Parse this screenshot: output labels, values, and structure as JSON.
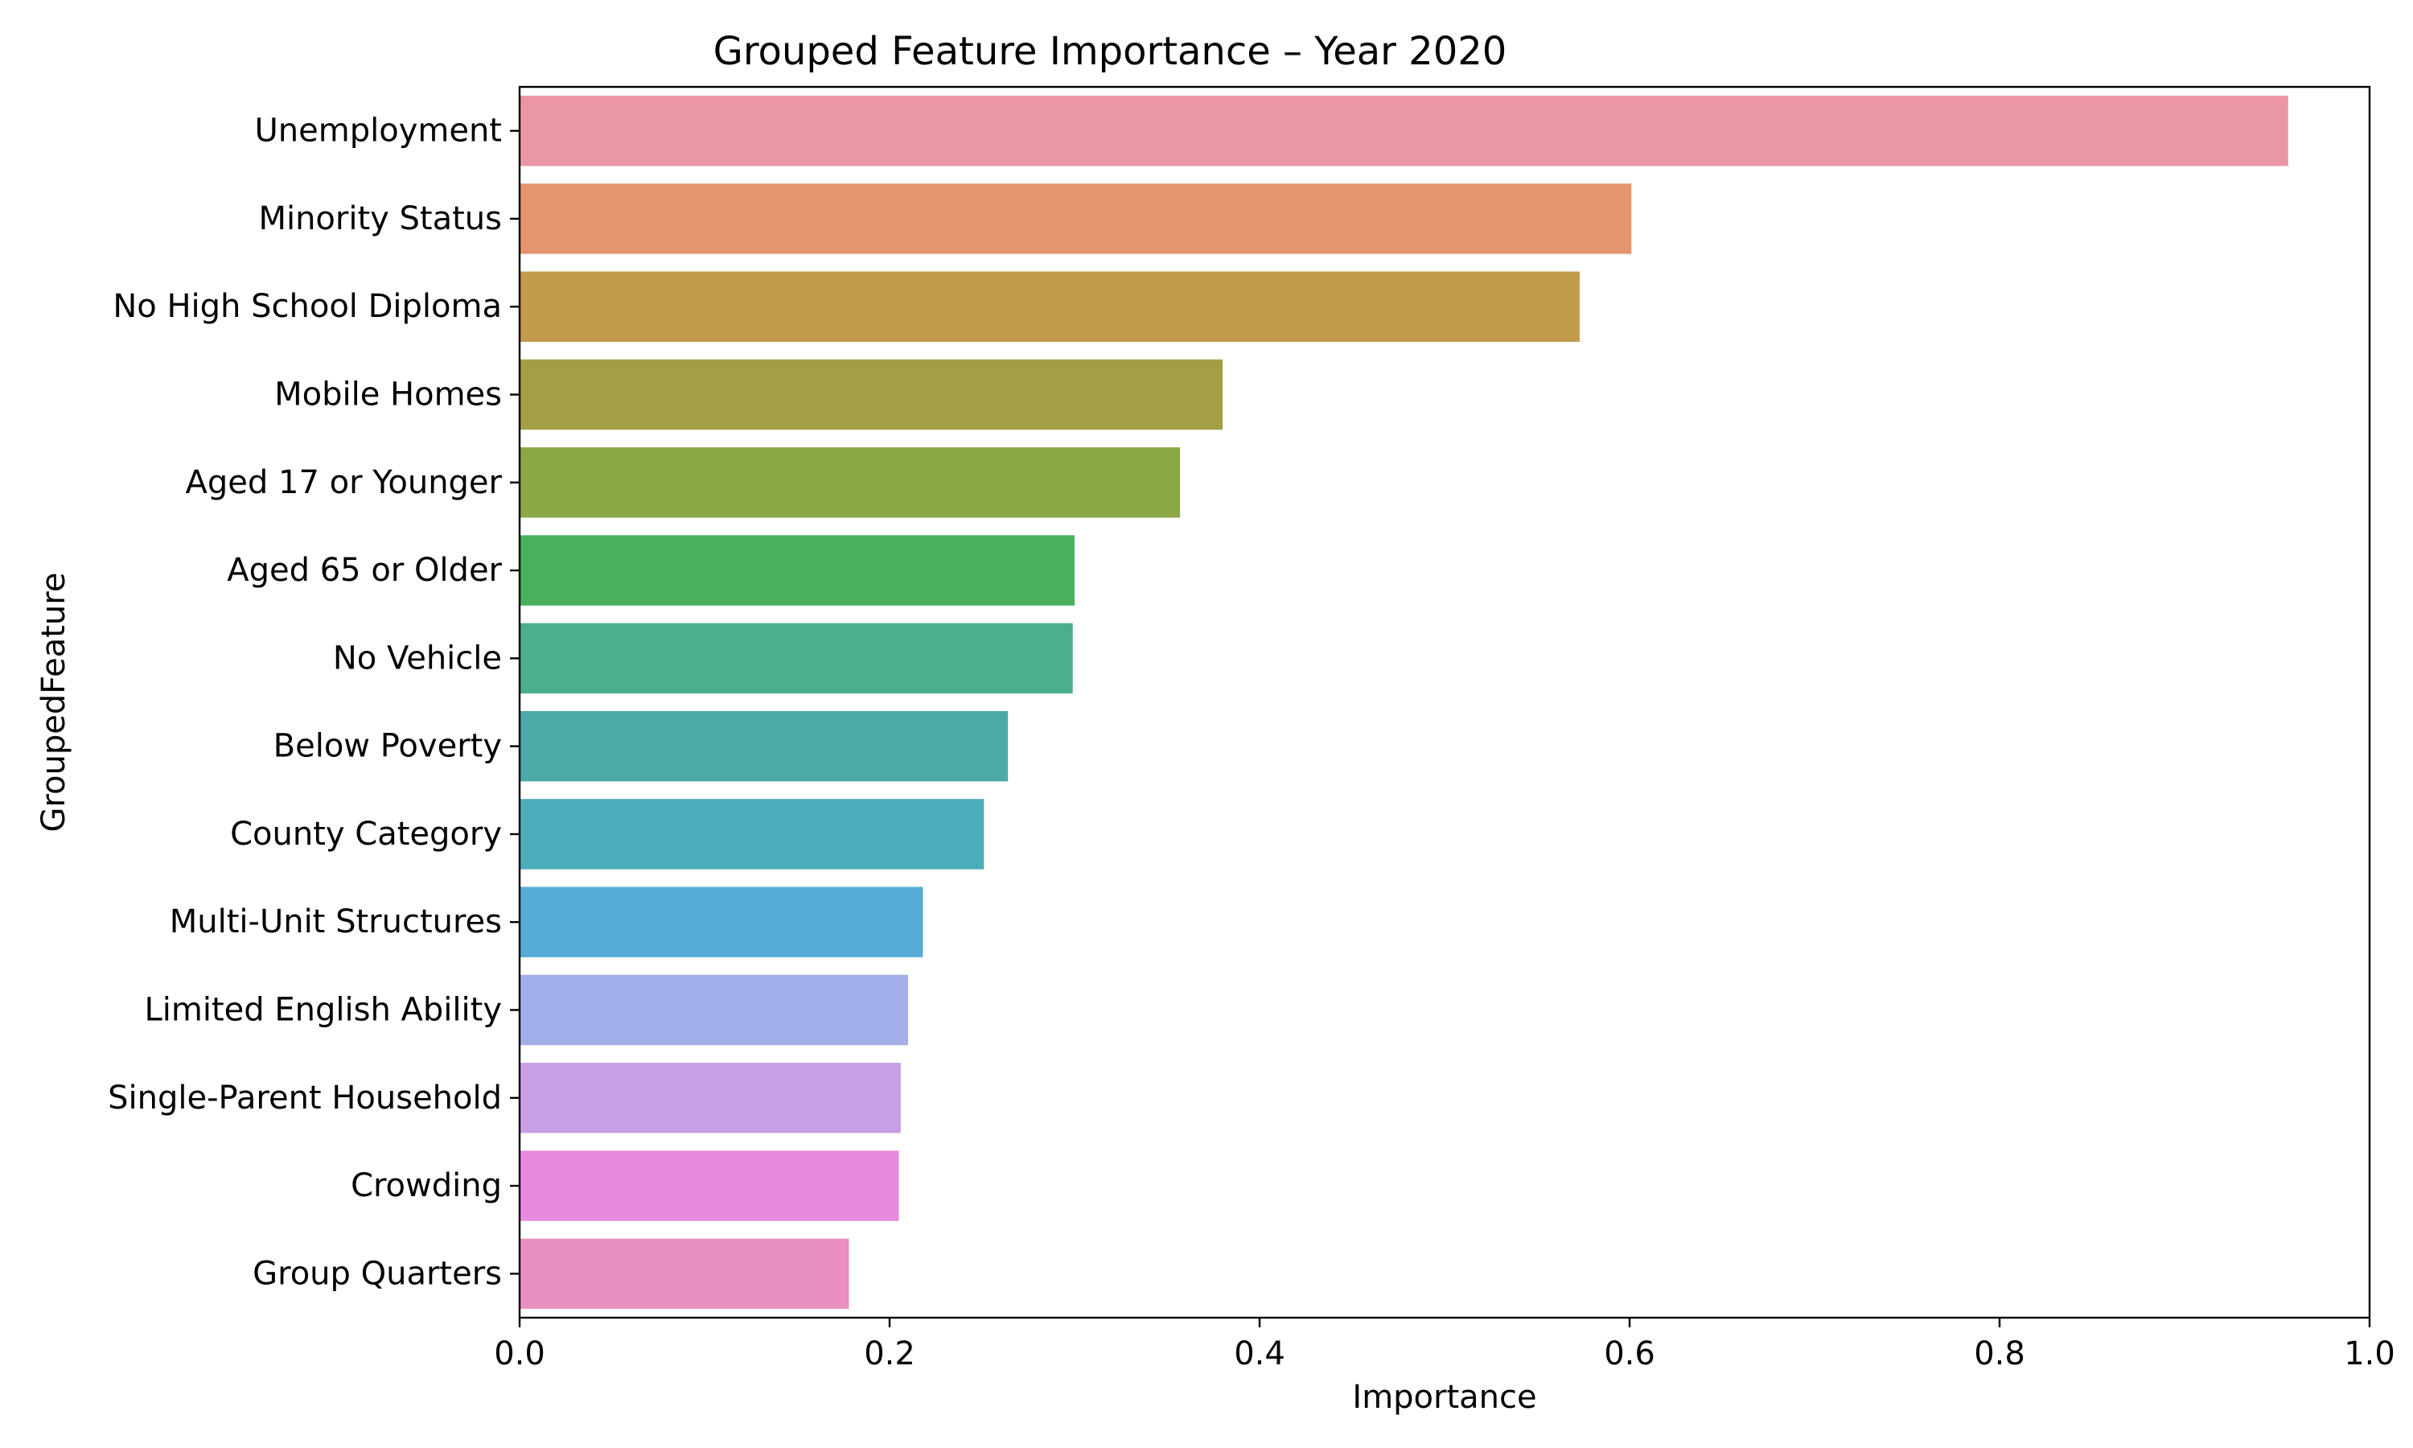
{
  "chart_data": {
    "type": "bar",
    "orientation": "horizontal",
    "title": "Grouped Feature Importance – Year 2020",
    "xlabel": "Importance",
    "ylabel": "GroupedFeature",
    "xlim": [
      0,
      1.0
    ],
    "xticks": [
      "0.0",
      "0.2",
      "0.4",
      "0.6",
      "0.8",
      "1.0"
    ],
    "grid": false,
    "categories": [
      "Unemployment",
      "Minority Status",
      "No High School Diploma",
      "Mobile Homes",
      "Aged 17 or Younger",
      "Aged 65 or Older",
      "No Vehicle",
      "Below Poverty",
      "County Category",
      "Multi-Unit Structures",
      "Limited English Ability",
      "Single-Parent Household",
      "Crowding",
      "Group Quarters"
    ],
    "values": [
      0.956,
      0.601,
      0.573,
      0.38,
      0.357,
      0.3,
      0.299,
      0.264,
      0.251,
      0.218,
      0.21,
      0.206,
      0.205,
      0.178
    ],
    "colors": [
      "#EA96A3",
      "#E4956C",
      "#C29B4B",
      "#A49E45",
      "#8AA846",
      "#4AB05D",
      "#4BAE8C",
      "#4BAAA7",
      "#4DACBA",
      "#55ACD6",
      "#A2AEE7",
      "#C89FE6",
      "#E88BDE",
      "#E990C0"
    ]
  }
}
